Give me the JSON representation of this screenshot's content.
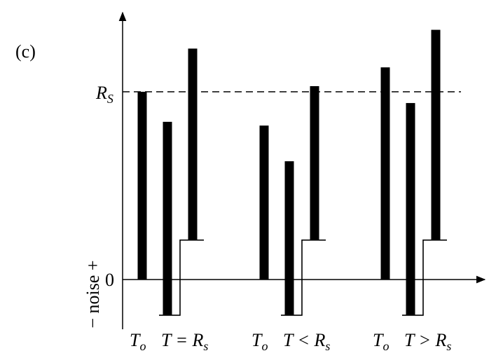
{
  "panel_label": "(c)",
  "y_axis": {
    "threshold_label": "R",
    "threshold_label_sub": "S",
    "zero_label": "0",
    "side_label": "− noise +"
  },
  "colors": {
    "ink": "#000000",
    "background": "#ffffff"
  },
  "chart_data": {
    "type": "bar",
    "threshold": {
      "name": "R_S",
      "value": 1.0,
      "style": "dashed"
    },
    "noise_floor": {
      "value": -0.19
    },
    "groups": [
      {
        "id": "equal",
        "labels": {
          "t0": "T",
          "t0_sub": "o",
          "cond_main": "T = R",
          "cond_sub": "s"
        },
        "bars": [
          {
            "role": "T_o",
            "bottom": 0.0,
            "top": 1.0
          },
          {
            "role": "noise_down",
            "bottom": -0.19,
            "top": 0.84
          },
          {
            "role": "noise_up",
            "bottom": 0.21,
            "top": 1.23
          }
        ],
        "noise_step": {
          "low": -0.19,
          "high": 0.21
        }
      },
      {
        "id": "less",
        "labels": {
          "t0": "T",
          "t0_sub": "o",
          "cond_main": "T < R",
          "cond_sub": "s"
        },
        "bars": [
          {
            "role": "T_o",
            "bottom": 0.0,
            "top": 0.82
          },
          {
            "role": "noise_down",
            "bottom": -0.19,
            "top": 0.63
          },
          {
            "role": "noise_up",
            "bottom": 0.21,
            "top": 1.03
          }
        ],
        "noise_step": {
          "low": -0.19,
          "high": 0.21
        }
      },
      {
        "id": "greater",
        "labels": {
          "t0": "T",
          "t0_sub": "o",
          "cond_main": "T > R",
          "cond_sub": "s"
        },
        "bars": [
          {
            "role": "T_o",
            "bottom": 0.0,
            "top": 1.13
          },
          {
            "role": "noise_down",
            "bottom": -0.19,
            "top": 0.94
          },
          {
            "role": "noise_up",
            "bottom": 0.21,
            "top": 1.33
          }
        ],
        "noise_step": {
          "low": -0.19,
          "high": 0.21
        }
      }
    ]
  }
}
